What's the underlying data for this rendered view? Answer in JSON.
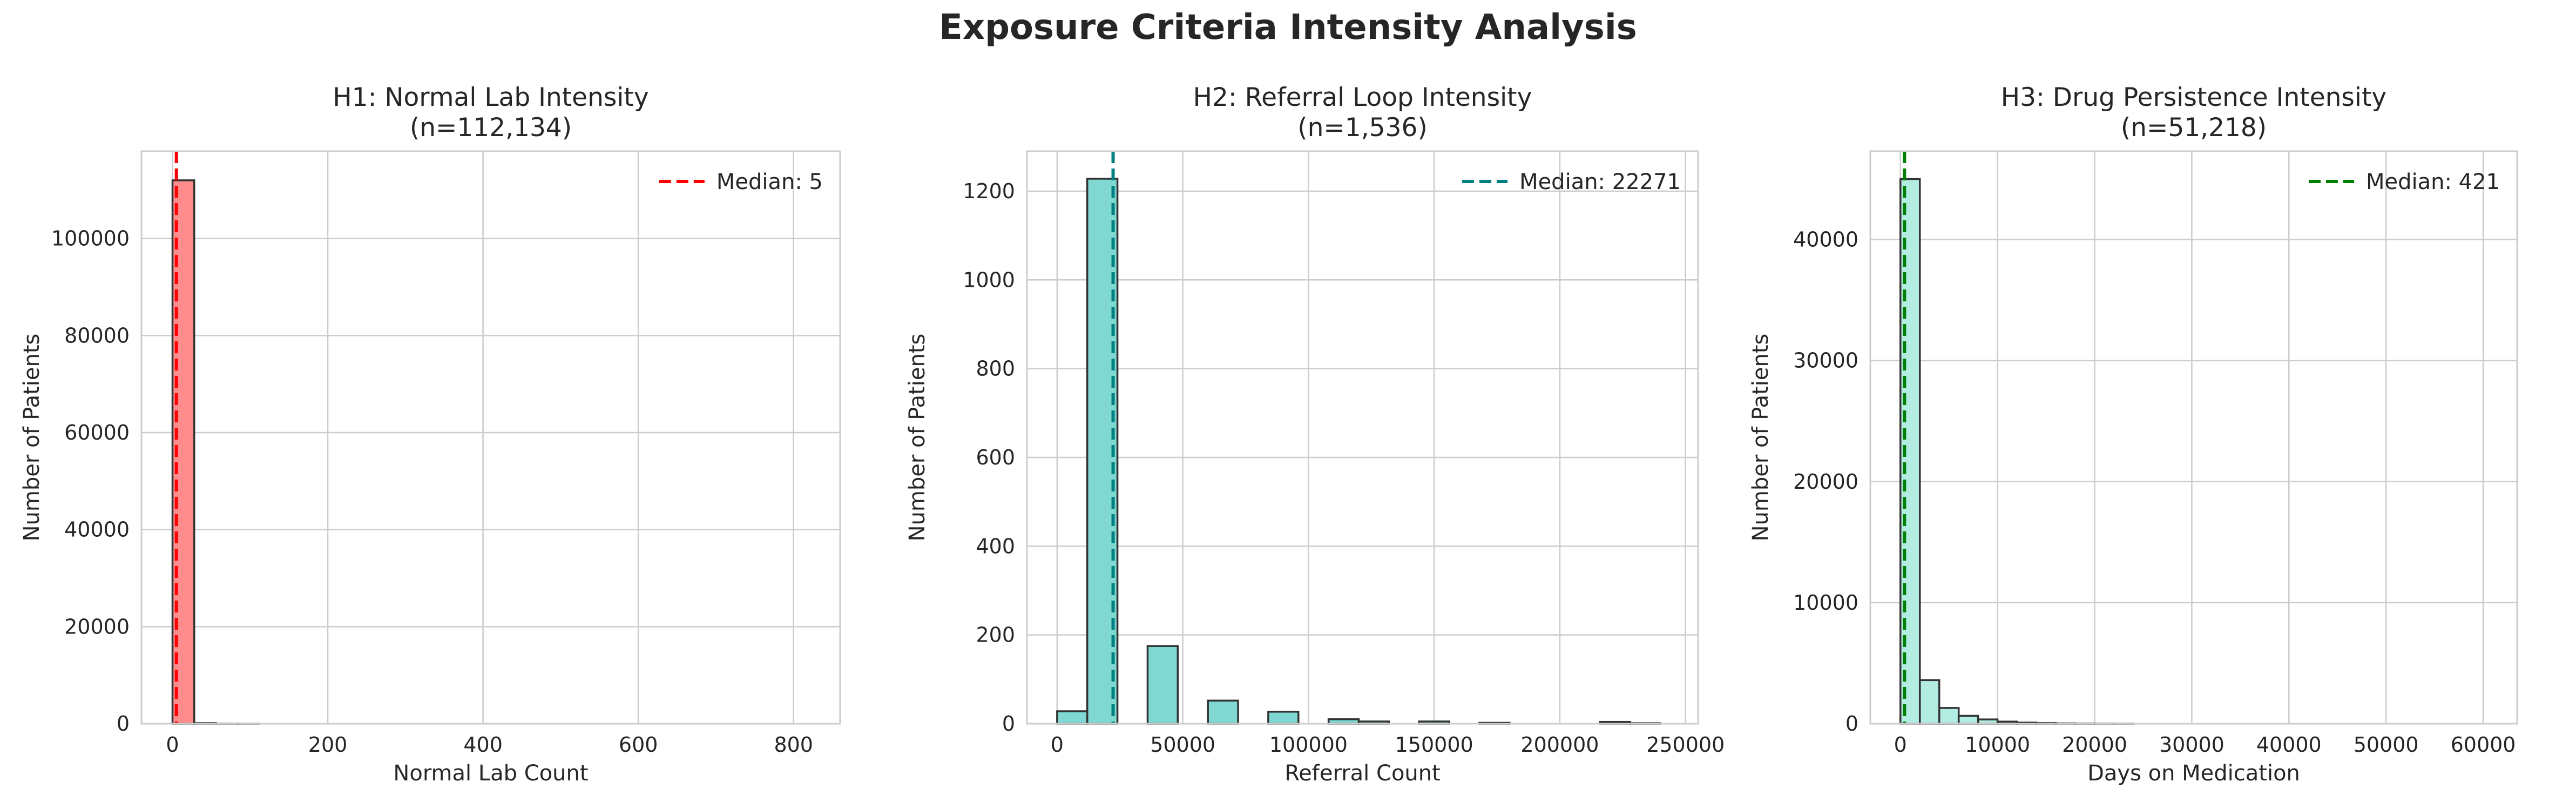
{
  "figure": {
    "title": "Exposure Criteria Intensity Analysis"
  },
  "chart_data": [
    {
      "type": "bar",
      "title": "H1: Normal Lab Intensity",
      "subtitle": "(n=112,134)",
      "xlabel": "Normal Lab Count",
      "ylabel": "Number of Patients",
      "xlim": [
        -40,
        860
      ],
      "ylim": [
        0,
        118000
      ],
      "xticks": [
        0,
        200,
        400,
        600,
        800
      ],
      "xtick_labels": [
        "0",
        "200",
        "400",
        "600",
        "800"
      ],
      "yticks": [
        0,
        20000,
        40000,
        60000,
        80000,
        100000
      ],
      "ytick_labels": [
        "0",
        "20000",
        "40000",
        "60000",
        "80000",
        "100000"
      ],
      "bin_width": 28,
      "bins": [
        {
          "x": 0,
          "count": 112000
        },
        {
          "x": 28,
          "count": 110
        },
        {
          "x": 56,
          "count": 15
        },
        {
          "x": 84,
          "count": 5
        }
      ],
      "median": {
        "label": "Median: 5",
        "value": 5,
        "color": "#ff0000"
      },
      "bar_color": "#ff8c8c",
      "legend_position": "upper right",
      "grid": true
    },
    {
      "type": "bar",
      "title": "H2: Referral Loop Intensity",
      "subtitle": "(n=1,536)",
      "xlabel": "Referral Count",
      "ylabel": "Number of Patients",
      "xlim": [
        -12000,
        255000
      ],
      "ylim": [
        0,
        1290
      ],
      "xticks": [
        0,
        50000,
        100000,
        150000,
        200000,
        250000
      ],
      "xtick_labels": [
        "0",
        "50000",
        "100000",
        "150000",
        "200000",
        "250000"
      ],
      "yticks": [
        0,
        200,
        400,
        600,
        800,
        1000,
        1200
      ],
      "ytick_labels": [
        "0",
        "200",
        "400",
        "600",
        "800",
        "1000",
        "1200"
      ],
      "bin_width": 12000,
      "bins": [
        {
          "x": 0,
          "count": 28
        },
        {
          "x": 12000,
          "count": 1228
        },
        {
          "x": 24000,
          "count": 0
        },
        {
          "x": 36000,
          "count": 175
        },
        {
          "x": 48000,
          "count": 0
        },
        {
          "x": 60000,
          "count": 52
        },
        {
          "x": 72000,
          "count": 0
        },
        {
          "x": 84000,
          "count": 27
        },
        {
          "x": 96000,
          "count": 0
        },
        {
          "x": 108000,
          "count": 10
        },
        {
          "x": 120000,
          "count": 5
        },
        {
          "x": 132000,
          "count": 0
        },
        {
          "x": 144000,
          "count": 5
        },
        {
          "x": 156000,
          "count": 0
        },
        {
          "x": 168000,
          "count": 2
        },
        {
          "x": 180000,
          "count": 0
        },
        {
          "x": 192000,
          "count": 0
        },
        {
          "x": 204000,
          "count": 0
        },
        {
          "x": 216000,
          "count": 4
        },
        {
          "x": 228000,
          "count": 1
        }
      ],
      "median": {
        "label": "Median: 22271",
        "value": 22271,
        "color": "#008080"
      },
      "bar_color": "#7fd9d2",
      "legend_position": "upper right",
      "grid": true
    },
    {
      "type": "bar",
      "title": "H3: Drug Persistence Intensity",
      "subtitle": "(n=51,218)",
      "xlabel": "Days on Medication",
      "ylabel": "Number of Patients",
      "xlim": [
        -3100,
        63500
      ],
      "ylim": [
        0,
        47300
      ],
      "xticks": [
        0,
        10000,
        20000,
        30000,
        40000,
        50000,
        60000
      ],
      "xtick_labels": [
        "0",
        "10000",
        "20000",
        "30000",
        "40000",
        "50000",
        "60000"
      ],
      "yticks": [
        0,
        10000,
        20000,
        30000,
        40000
      ],
      "ytick_labels": [
        "0",
        "10000",
        "20000",
        "30000",
        "40000"
      ],
      "bin_width": 2000,
      "bins": [
        {
          "x": 0,
          "count": 45000
        },
        {
          "x": 2000,
          "count": 3600
        },
        {
          "x": 4000,
          "count": 1300
        },
        {
          "x": 6000,
          "count": 650
        },
        {
          "x": 8000,
          "count": 350
        },
        {
          "x": 10000,
          "count": 170
        },
        {
          "x": 12000,
          "count": 90
        },
        {
          "x": 14000,
          "count": 50
        },
        {
          "x": 16000,
          "count": 25
        },
        {
          "x": 18000,
          "count": 15
        },
        {
          "x": 20000,
          "count": 10
        },
        {
          "x": 22000,
          "count": 5
        }
      ],
      "median": {
        "label": "Median: 421",
        "value": 421,
        "color": "#008000"
      },
      "bar_color": "#b3ece1",
      "legend_position": "upper right",
      "grid": true
    }
  ]
}
